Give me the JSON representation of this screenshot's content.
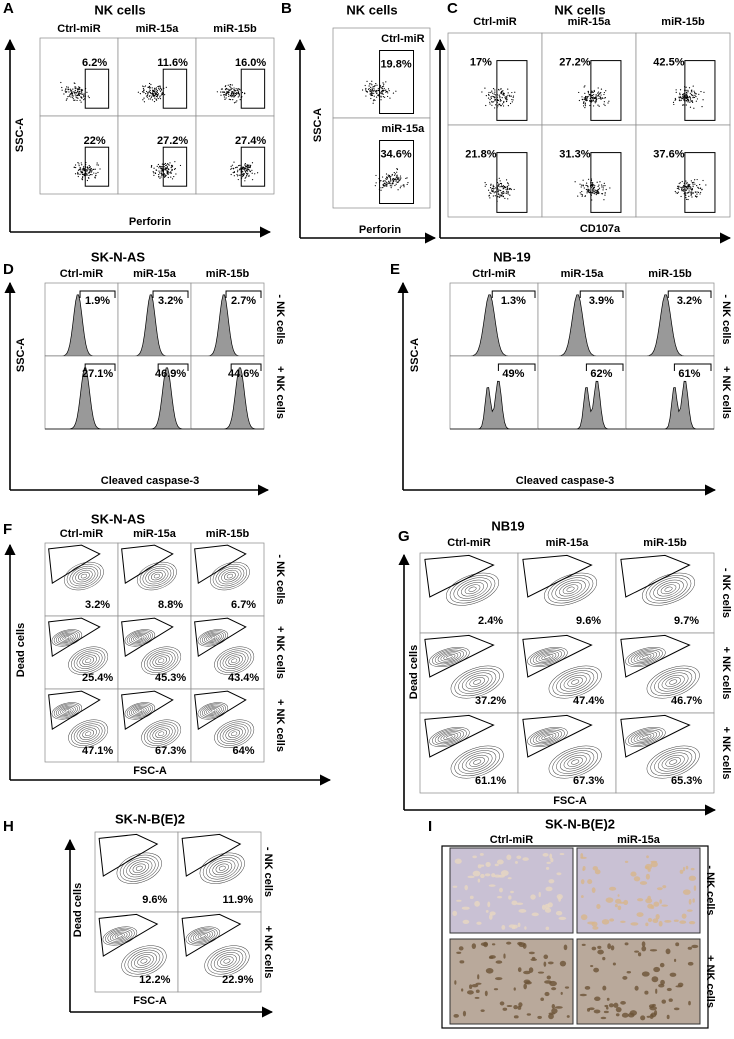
{
  "panels": [
    {
      "letter": "A",
      "title": "NK cells",
      "columns": [
        "Ctrl-miR",
        "miR-15a",
        "miR-15b"
      ],
      "rows": [
        {
          "values": [
            "6.2%",
            "11.6%",
            "16.0%"
          ]
        },
        {
          "values": [
            "22%",
            "27.2%",
            "27.4%"
          ]
        }
      ],
      "y_label": "SSC-A",
      "x_label": "Perforin"
    },
    {
      "letter": "B",
      "title": "NK cells",
      "rows": [
        {
          "label": "Ctrl-miR",
          "values": [
            "19.8%"
          ]
        },
        {
          "label": "miR-15a",
          "values": [
            "34.6%"
          ]
        }
      ],
      "y_label": "SSC-A",
      "x_label": "Perforin"
    },
    {
      "letter": "C",
      "title": "NK cells",
      "columns": [
        "Ctrl-miR",
        "miR-15a",
        "miR-15b"
      ],
      "rows": [
        {
          "values": [
            "17%",
            "27.2%",
            "42.5%"
          ]
        },
        {
          "values": [
            "21.8%",
            "31.3%",
            "37.6%"
          ]
        }
      ],
      "x_label": "CD107a"
    },
    {
      "letter": "D",
      "title": "SK-N-AS",
      "columns": [
        "Ctrl-miR",
        "miR-15a",
        "miR-15b"
      ],
      "rows": [
        {
          "label": "- NK cells",
          "values": [
            "1.9%",
            "3.2%",
            "2.7%"
          ]
        },
        {
          "label": "+ NK cells",
          "values": [
            "27.1%",
            "46.9%",
            "44.6%"
          ]
        }
      ],
      "y_label": "SSC-A",
      "x_label": "Cleaved caspase-3"
    },
    {
      "letter": "E",
      "title": "NB-19",
      "columns": [
        "Ctrl-miR",
        "miR-15a",
        "miR-15b"
      ],
      "rows": [
        {
          "label": "- NK cells",
          "values": [
            "1.3%",
            "3.9%",
            "3.2%"
          ]
        },
        {
          "label": "+ NK cells",
          "values": [
            "49%",
            "62%",
            "61%"
          ]
        }
      ],
      "y_label": "SSC-A",
      "x_label": "Cleaved caspase-3"
    },
    {
      "letter": "F",
      "title": "SK-N-AS",
      "columns": [
        "Ctrl-miR",
        "miR-15a",
        "miR-15b"
      ],
      "rows": [
        {
          "label": "- NK cells",
          "values": [
            "3.2%",
            "8.8%",
            "6.7%"
          ]
        },
        {
          "label": "+ NK cells",
          "values": [
            "25.4%",
            "45.3%",
            "43.4%"
          ]
        },
        {
          "label": "+ NK cells",
          "values": [
            "47.1%",
            "67.3%",
            "64%"
          ]
        }
      ],
      "y_label": "Dead cells",
      "x_label": "FSC-A"
    },
    {
      "letter": "G",
      "title": "NB19",
      "columns": [
        "Ctrl-miR",
        "miR-15a",
        "miR-15b"
      ],
      "rows": [
        {
          "label": "- NK cells",
          "values": [
            "2.4%",
            "9.6%",
            "9.7%"
          ]
        },
        {
          "label": "+ NK cells",
          "values": [
            "37.2%",
            "47.4%",
            "46.7%"
          ]
        },
        {
          "label": "+ NK cells",
          "values": [
            "61.1%",
            "67.3%",
            "65.3%"
          ]
        }
      ],
      "y_label": "Dead cells",
      "x_label": "FSC-A"
    },
    {
      "letter": "H",
      "title": "SK-N-B(E)2",
      "rows": [
        {
          "label": "- NK cells",
          "values": [
            "9.6%",
            "11.9%"
          ]
        },
        {
          "label": "+ NK cells",
          "values": [
            "12.2%",
            "22.9%"
          ]
        }
      ],
      "y_label": "Dead cells",
      "x_label": "FSC-A"
    },
    {
      "letter": "I",
      "title": "SK-N-B(E)2",
      "columns": [
        "Ctrl-miR",
        "miR-15a"
      ],
      "rows": [
        {
          "label": "- NK cells"
        },
        {
          "label": "+ NK cells"
        }
      ]
    }
  ]
}
